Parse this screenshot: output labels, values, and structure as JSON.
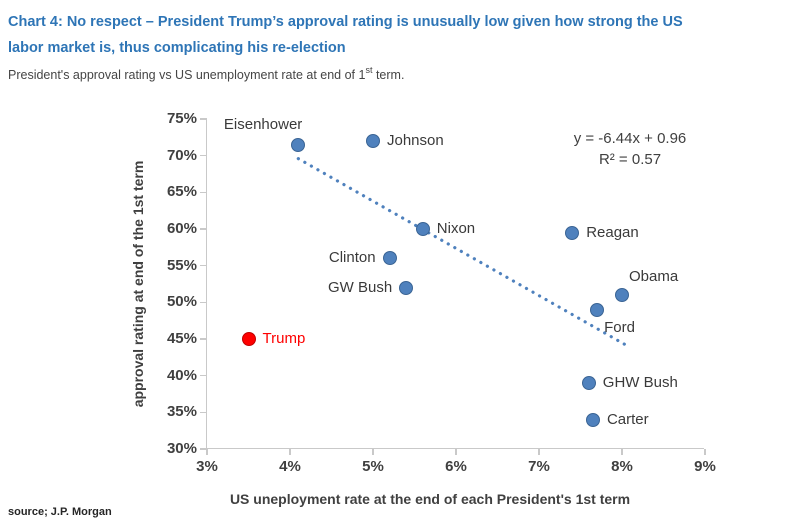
{
  "header": {
    "title_line1": "Chart 4: No respect – President Trump’s approval rating is unusually low given how strong the US",
    "title_line2": "labor market is, thus complicating his re-election",
    "subtitle_prefix": "President's approval rating vs US unemployment rate at end of 1",
    "subtitle_sup": "st",
    "subtitle_suffix": " term."
  },
  "source": "source; J.P. Morgan",
  "chart_data": {
    "type": "scatter",
    "xlabel": "US uneployment rate at the end of each President's 1st term",
    "ylabel": "approval rating at end of the 1st term",
    "xlim": [
      3,
      9
    ],
    "ylim": [
      30,
      75
    ],
    "x_ticks": [
      {
        "v": 3,
        "label": "3%"
      },
      {
        "v": 4,
        "label": "4%"
      },
      {
        "v": 5,
        "label": "5%"
      },
      {
        "v": 6,
        "label": "6%"
      },
      {
        "v": 7,
        "label": "7%"
      },
      {
        "v": 8,
        "label": "8%"
      },
      {
        "v": 9,
        "label": "9%"
      }
    ],
    "y_ticks": [
      {
        "v": 75,
        "label": "75%"
      },
      {
        "v": 70,
        "label": "70%"
      },
      {
        "v": 65,
        "label": "65%"
      },
      {
        "v": 60,
        "label": "60%"
      },
      {
        "v": 55,
        "label": "55%"
      },
      {
        "v": 50,
        "label": "50%"
      },
      {
        "v": 45,
        "label": "45%"
      },
      {
        "v": 40,
        "label": "40%"
      },
      {
        "v": 35,
        "label": "35%"
      },
      {
        "v": 30,
        "label": "30%"
      }
    ],
    "points": [
      {
        "name": "Eisenhower",
        "x": 4.1,
        "y": 71.5,
        "color": "blue",
        "label_pos": "above-left"
      },
      {
        "name": "Johnson",
        "x": 5.0,
        "y": 72,
        "color": "blue",
        "label_pos": "right"
      },
      {
        "name": "Nixon",
        "x": 5.6,
        "y": 60,
        "color": "blue",
        "label_pos": "right"
      },
      {
        "name": "Clinton",
        "x": 5.2,
        "y": 56,
        "color": "blue",
        "label_pos": "left"
      },
      {
        "name": "GW Bush",
        "x": 5.4,
        "y": 52,
        "color": "blue",
        "label_pos": "left"
      },
      {
        "name": "Reagan",
        "x": 7.4,
        "y": 59.5,
        "color": "blue",
        "label_pos": "right"
      },
      {
        "name": "Obama",
        "x": 8.0,
        "y": 51,
        "color": "blue",
        "label_pos": "above-right"
      },
      {
        "name": "Ford",
        "x": 7.7,
        "y": 49,
        "color": "blue",
        "label_pos": "below-right"
      },
      {
        "name": "GHW Bush",
        "x": 7.6,
        "y": 39,
        "color": "blue",
        "label_pos": "right"
      },
      {
        "name": "Carter",
        "x": 7.65,
        "y": 34,
        "color": "blue",
        "label_pos": "right"
      },
      {
        "name": "Trump",
        "x": 3.5,
        "y": 45,
        "color": "red",
        "label_pos": "right"
      }
    ],
    "trendline": {
      "style": "dotted",
      "x_start": 4.1,
      "x_end": 8.03,
      "slope": -6.44,
      "intercept": 0.96
    },
    "annotation": {
      "line1": "y = -6.44x + 0.96",
      "line2": "R² = 0.57"
    },
    "colors": {
      "title_blue": "#2e75b6",
      "blue_point": "#4f81bd",
      "blue_point_border": "#3a6494",
      "red_point": "#fe0000",
      "red_point_border": "#c00000",
      "trendline": "#4f81bd",
      "axis_line": "#c9c9c9"
    },
    "legend": "none",
    "grid": "off"
  }
}
